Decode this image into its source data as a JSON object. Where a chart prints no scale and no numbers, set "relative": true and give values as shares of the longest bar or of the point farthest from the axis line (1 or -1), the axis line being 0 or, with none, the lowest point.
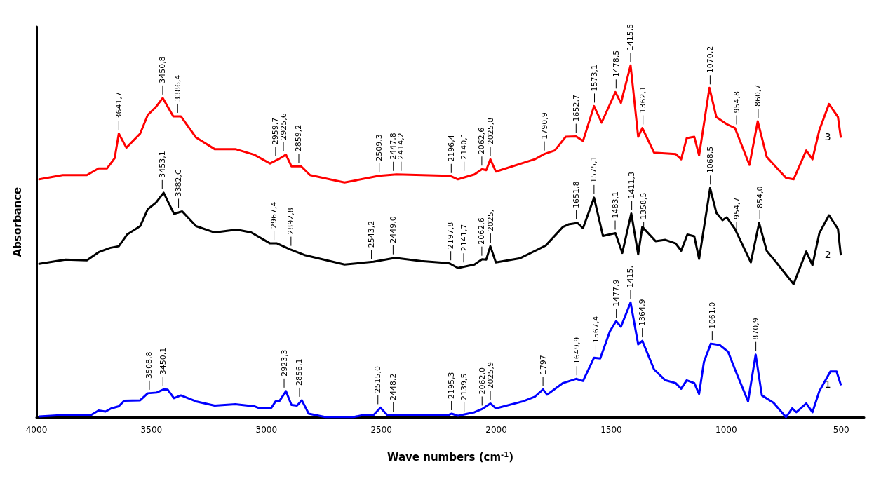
{
  "chart_data": {
    "type": "line",
    "relative": true,
    "xlabel": "Wave numbers (cm$^{-1}$)",
    "ylabel": "Absorbance",
    "xlim": [
      4000,
      400
    ],
    "xticks": [
      4000,
      3500,
      3000,
      2500,
      2000,
      1500,
      1000,
      500
    ],
    "grid": false,
    "legend": false,
    "marker": "none",
    "line_style": "solid",
    "series": [
      {
        "name": "1",
        "color": "#0000ff",
        "x": [
          3988,
          3886,
          3763,
          3730,
          3700,
          3675,
          3642,
          3618,
          3549,
          3516,
          3477,
          3447,
          3429,
          3402,
          3372,
          3306,
          3225,
          3135,
          3053,
          3029,
          2978,
          2960,
          2942,
          2915,
          2891,
          2867,
          2846,
          2816,
          2741,
          2624,
          2579,
          2534,
          2504,
          2474,
          2209,
          2194,
          2167,
          2095,
          2062,
          2026,
          2002,
          1884,
          1833,
          1797,
          1779,
          1710,
          1653,
          1623,
          1575,
          1548,
          1506,
          1479,
          1458,
          1416,
          1383,
          1365,
          1314,
          1265,
          1220,
          1196,
          1172,
          1139,
          1118,
          1097,
          1067,
          1028,
          992,
          962,
          905,
          872,
          845,
          794,
          740,
          713,
          695,
          652,
          625,
          595,
          547,
          520,
          502
        ],
        "values": [
          0.002,
          0.006,
          0.006,
          0.019,
          0.016,
          0.025,
          0.031,
          0.047,
          0.048,
          0.068,
          0.07,
          0.079,
          0.078,
          0.054,
          0.062,
          0.045,
          0.033,
          0.037,
          0.031,
          0.025,
          0.027,
          0.045,
          0.047,
          0.074,
          0.035,
          0.033,
          0.048,
          0.01,
          0,
          0,
          0.006,
          0.006,
          0.027,
          0.006,
          0.006,
          0.01,
          0.004,
          0.014,
          0.023,
          0.039,
          0.025,
          0.045,
          0.058,
          0.079,
          0.064,
          0.097,
          0.109,
          0.103,
          0.169,
          0.167,
          0.244,
          0.273,
          0.257,
          0.326,
          0.207,
          0.217,
          0.136,
          0.105,
          0.097,
          0.081,
          0.105,
          0.097,
          0.066,
          0.157,
          0.209,
          0.205,
          0.186,
          0.136,
          0.045,
          0.178,
          0.062,
          0.041,
          0,
          0.025,
          0.014,
          0.039,
          0.014,
          0.074,
          0.13,
          0.13,
          0.093
        ]
      },
      {
        "name": "2",
        "color": "#000000",
        "x": [
          3988,
          3874,
          3781,
          3730,
          3681,
          3642,
          3606,
          3549,
          3516,
          3480,
          3447,
          3402,
          3366,
          3306,
          3225,
          3129,
          3066,
          2984,
          2954,
          2897,
          2834,
          2660,
          2534,
          2440,
          2329,
          2209,
          2200,
          2167,
          2095,
          2062,
          2044,
          2026,
          2002,
          1896,
          1785,
          1710,
          1686,
          1647,
          1623,
          1575,
          1536,
          1482,
          1452,
          1413,
          1383,
          1365,
          1307,
          1265,
          1220,
          1196,
          1169,
          1139,
          1118,
          1070,
          1043,
          1016,
          998,
          962,
          893,
          857,
          824,
          782,
          707,
          652,
          625,
          595,
          553,
          514,
          502
        ],
        "values": [
          0.436,
          0.448,
          0.446,
          0.469,
          0.481,
          0.486,
          0.519,
          0.543,
          0.591,
          0.61,
          0.638,
          0.578,
          0.585,
          0.543,
          0.525,
          0.533,
          0.525,
          0.494,
          0.494,
          0.477,
          0.461,
          0.434,
          0.442,
          0.453,
          0.444,
          0.438,
          0.436,
          0.424,
          0.434,
          0.449,
          0.448,
          0.486,
          0.44,
          0.452,
          0.488,
          0.541,
          0.548,
          0.552,
          0.537,
          0.624,
          0.515,
          0.523,
          0.467,
          0.579,
          0.463,
          0.541,
          0.5,
          0.504,
          0.494,
          0.473,
          0.519,
          0.514,
          0.45,
          0.651,
          0.581,
          0.56,
          0.568,
          0.535,
          0.44,
          0.552,
          0.473,
          0.44,
          0.378,
          0.471,
          0.432,
          0.523,
          0.574,
          0.535,
          0.463
        ]
      },
      {
        "name": "3",
        "color": "#ff0000",
        "x": [
          3988,
          3886,
          3781,
          3730,
          3693,
          3660,
          3642,
          3609,
          3549,
          3516,
          3480,
          3451,
          3405,
          3372,
          3306,
          3225,
          3135,
          3053,
          2984,
          2948,
          2915,
          2891,
          2849,
          2810,
          2660,
          2510,
          2434,
          2209,
          2194,
          2167,
          2095,
          2062,
          2044,
          2026,
          2002,
          1833,
          1791,
          1746,
          1698,
          1653,
          1623,
          1575,
          1542,
          1482,
          1458,
          1416,
          1383,
          1365,
          1314,
          1220,
          1196,
          1172,
          1139,
          1118,
          1073,
          1043,
          998,
          962,
          899,
          863,
          824,
          740,
          707,
          652,
          625,
          595,
          553,
          514,
          502
        ],
        "values": [
          0.676,
          0.688,
          0.688,
          0.707,
          0.707,
          0.736,
          0.806,
          0.766,
          0.806,
          0.859,
          0.882,
          0.907,
          0.855,
          0.855,
          0.795,
          0.762,
          0.762,
          0.746,
          0.721,
          0.733,
          0.746,
          0.713,
          0.713,
          0.688,
          0.667,
          0.686,
          0.69,
          0.686,
          0.684,
          0.676,
          0.69,
          0.705,
          0.702,
          0.733,
          0.698,
          0.733,
          0.748,
          0.758,
          0.797,
          0.798,
          0.785,
          0.884,
          0.837,
          0.924,
          0.893,
          1,
          0.797,
          0.822,
          0.752,
          0.748,
          0.733,
          0.793,
          0.797,
          0.744,
          0.936,
          0.853,
          0.833,
          0.822,
          0.717,
          0.841,
          0.74,
          0.68,
          0.676,
          0.758,
          0.733,
          0.816,
          0.89,
          0.853,
          0.797
        ]
      }
    ],
    "annotations": [
      {
        "text": "3641,7",
        "x": 3642,
        "y": 0.806
      },
      {
        "text": "3450,8",
        "x": 3451,
        "y": 0.907
      },
      {
        "text": "3386,4",
        "x": 3386,
        "y": 0.855
      },
      {
        "text": "2959,7",
        "x": 2960,
        "y": 0.733
      },
      {
        "text": "2925,6",
        "x": 2926,
        "y": 0.746
      },
      {
        "text": "2859,2",
        "x": 2859,
        "y": 0.713
      },
      {
        "text": "2509,3",
        "x": 2509,
        "y": 0.686
      },
      {
        "text": "2447,8",
        "x": 2448,
        "y": 0.69
      },
      {
        "text": "2414,2",
        "x": 2414,
        "y": 0.69
      },
      {
        "text": "2196,4",
        "x": 2196,
        "y": 0.684
      },
      {
        "text": "2140,1",
        "x": 2140,
        "y": 0.69
      },
      {
        "text": "2062,6",
        "x": 2063,
        "y": 0.705
      },
      {
        "text": "2025,8",
        "x": 2026,
        "y": 0.733
      },
      {
        "text": "1790,9",
        "x": 1791,
        "y": 0.748
      },
      {
        "text": "1652,7",
        "x": 1653,
        "y": 0.798
      },
      {
        "text": "1573,1",
        "x": 1573,
        "y": 0.884
      },
      {
        "text": "1478,5",
        "x": 1479,
        "y": 0.924
      },
      {
        "text": "1415,5",
        "x": 1416,
        "y": 1
      },
      {
        "text": "1362,1",
        "x": 1362,
        "y": 0.822
      },
      {
        "text": "1070,2",
        "x": 1070,
        "y": 0.936
      },
      {
        "text": "954,8",
        "x": 955,
        "y": 0.822
      },
      {
        "text": "860,7",
        "x": 861,
        "y": 0.841
      },
      {
        "text": "3453,1",
        "x": 3453,
        "y": 0.638
      },
      {
        "text": "3382,C",
        "x": 3382,
        "y": 0.585
      },
      {
        "text": "2967,4",
        "x": 2967,
        "y": 0.494
      },
      {
        "text": "2892,8",
        "x": 2893,
        "y": 0.477
      },
      {
        "text": "2543,2",
        "x": 2543,
        "y": 0.44
      },
      {
        "text": "2449,0",
        "x": 2449,
        "y": 0.453
      },
      {
        "text": "2197,8",
        "x": 2198,
        "y": 0.436
      },
      {
        "text": "2141,7",
        "x": 2142,
        "y": 0.43
      },
      {
        "text": "2062,6",
        "x": 2063,
        "y": 0.449
      },
      {
        "text": "2025,",
        "x": 2025,
        "y": 0.486
      },
      {
        "text": "1651,8",
        "x": 1652,
        "y": 0.552
      },
      {
        "text": "1575,1",
        "x": 1575,
        "y": 0.624
      },
      {
        "text": "1483,1",
        "x": 1483,
        "y": 0.523
      },
      {
        "text": "1411,3",
        "x": 1411,
        "y": 0.579
      },
      {
        "text": "1358,5",
        "x": 1359,
        "y": 0.52
      },
      {
        "text": "1068,5",
        "x": 1069,
        "y": 0.651
      },
      {
        "text": "954,7",
        "x": 955,
        "y": 0.52
      },
      {
        "text": "854,0",
        "x": 854,
        "y": 0.552
      },
      {
        "text": "3508,8",
        "x": 3509,
        "y": 0.068
      },
      {
        "text": "3450,1",
        "x": 3450,
        "y": 0.079
      },
      {
        "text": "2923,3",
        "x": 2923,
        "y": 0.074
      },
      {
        "text": "2856,1",
        "x": 2856,
        "y": 0.048
      },
      {
        "text": "2515,0",
        "x": 2515,
        "y": 0.027
      },
      {
        "text": "2448,2",
        "x": 2448,
        "y": 0.006
      },
      {
        "text": "2195,3",
        "x": 2195,
        "y": 0.01
      },
      {
        "text": "2139,5",
        "x": 2140,
        "y": 0.006
      },
      {
        "text": "2062,0",
        "x": 2062,
        "y": 0.023
      },
      {
        "text": "2025,9",
        "x": 2026,
        "y": 0.039
      },
      {
        "text": "1797",
        "x": 1797,
        "y": 0.079
      },
      {
        "text": "1649,9",
        "x": 1650,
        "y": 0.109
      },
      {
        "text": "1567,4",
        "x": 1567,
        "y": 0.169
      },
      {
        "text": "1477,9",
        "x": 1478,
        "y": 0.273
      },
      {
        "text": "1415,",
        "x": 1416,
        "y": 0.326
      },
      {
        "text": "1364,9",
        "x": 1365,
        "y": 0.217
      },
      {
        "text": "1061,0",
        "x": 1061,
        "y": 0.209
      },
      {
        "text": "870,9",
        "x": 871,
        "y": 0.178
      }
    ]
  }
}
